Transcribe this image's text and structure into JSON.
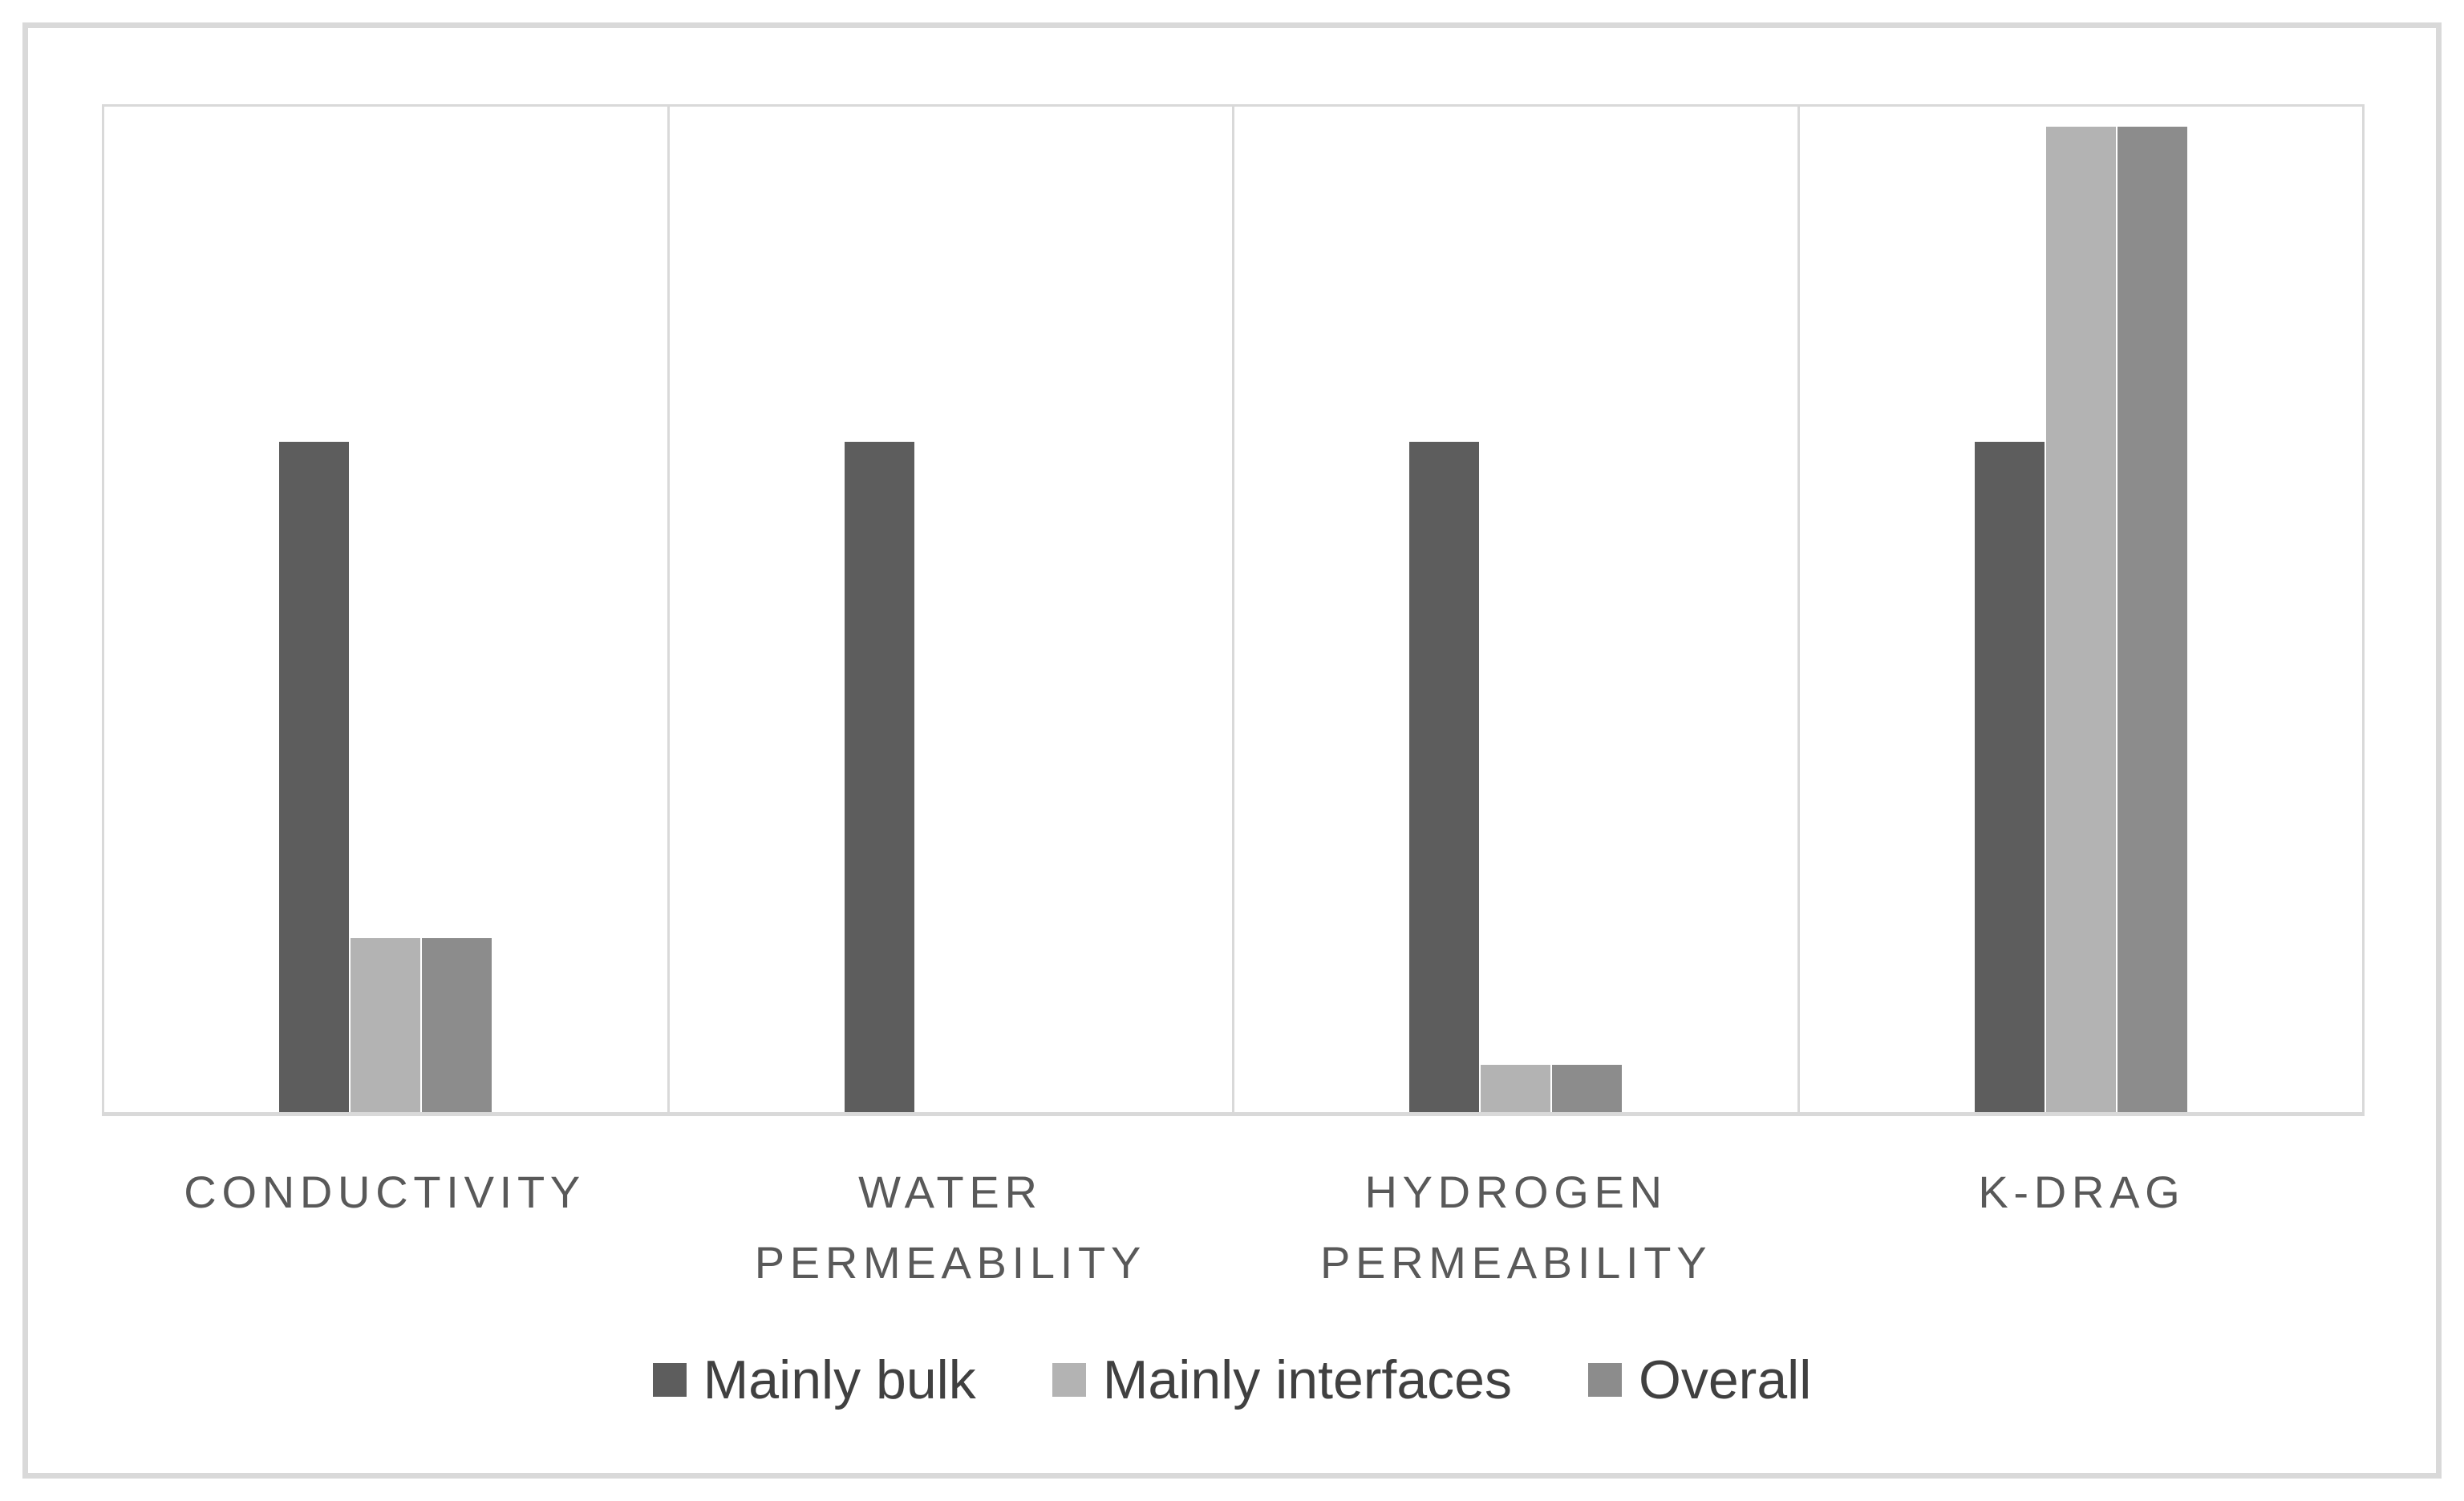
{
  "chart_data": {
    "type": "bar",
    "title": "",
    "xlabel": "",
    "ylabel": "",
    "categories": [
      "CONDUCTIVITY",
      "WATER\nPERMEABILITY",
      "HYDROGEN\nPERMEABILITY",
      "K-DRAG"
    ],
    "series": [
      {
        "name": "Mainly bulk",
        "color": "#5d5d5d",
        "values": [
          1.0,
          1.0,
          1.0,
          1.0
        ]
      },
      {
        "name": "Mainly interfaces",
        "color": "#b3b3b3",
        "values": [
          0.26,
          0,
          0.07,
          1.47
        ]
      },
      {
        "name": "Overall",
        "color": "#8c8c8c",
        "values": [
          0.26,
          0,
          0.07,
          1.47
        ]
      }
    ],
    "ylim": [
      0,
      1.5
    ],
    "yaxis_visible": false,
    "grid": "vertical panel dividers only",
    "legend_position": "bottom",
    "colors": {
      "gridline": "#d9d9d9",
      "axis_line": "#d9d9d9",
      "frame_border": "#d9d9d9",
      "category_label_text": "#595959",
      "legend_text": "#404040",
      "background": "#ffffff"
    }
  }
}
